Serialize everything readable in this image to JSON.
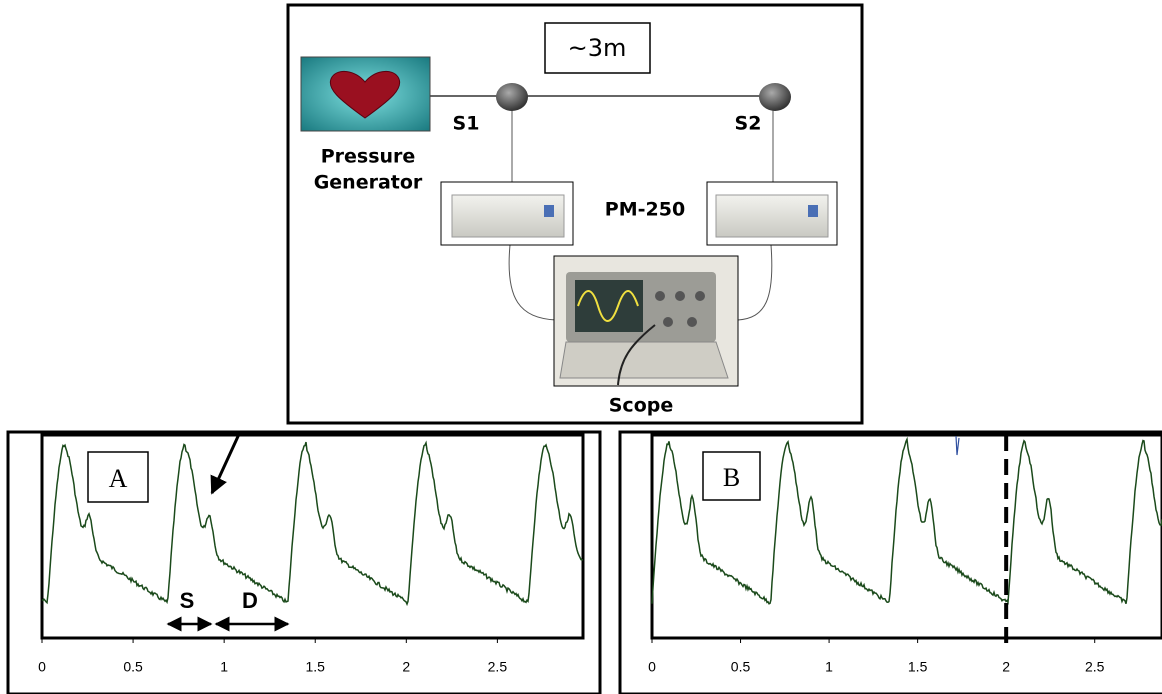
{
  "diagram": {
    "distance_label": "~3m",
    "sensor_1": "S1",
    "sensor_2": "S2",
    "generator": [
      "Pressure",
      "Generator"
    ],
    "monitor": "PM-250",
    "scope": "Scope"
  },
  "chart_data": [
    {
      "type": "trace",
      "label": "A",
      "xlim": [
        0,
        2.97
      ],
      "xticks": [
        0,
        0.5,
        1,
        1.5,
        2,
        2.5
      ],
      "annotations": [
        "S",
        "D"
      ]
    },
    {
      "type": "trace",
      "label": "B",
      "xlim": [
        0,
        2.88
      ],
      "xticks": [
        0,
        0.5,
        1,
        1.5,
        2,
        2.5
      ],
      "marker_x": 2
    }
  ]
}
